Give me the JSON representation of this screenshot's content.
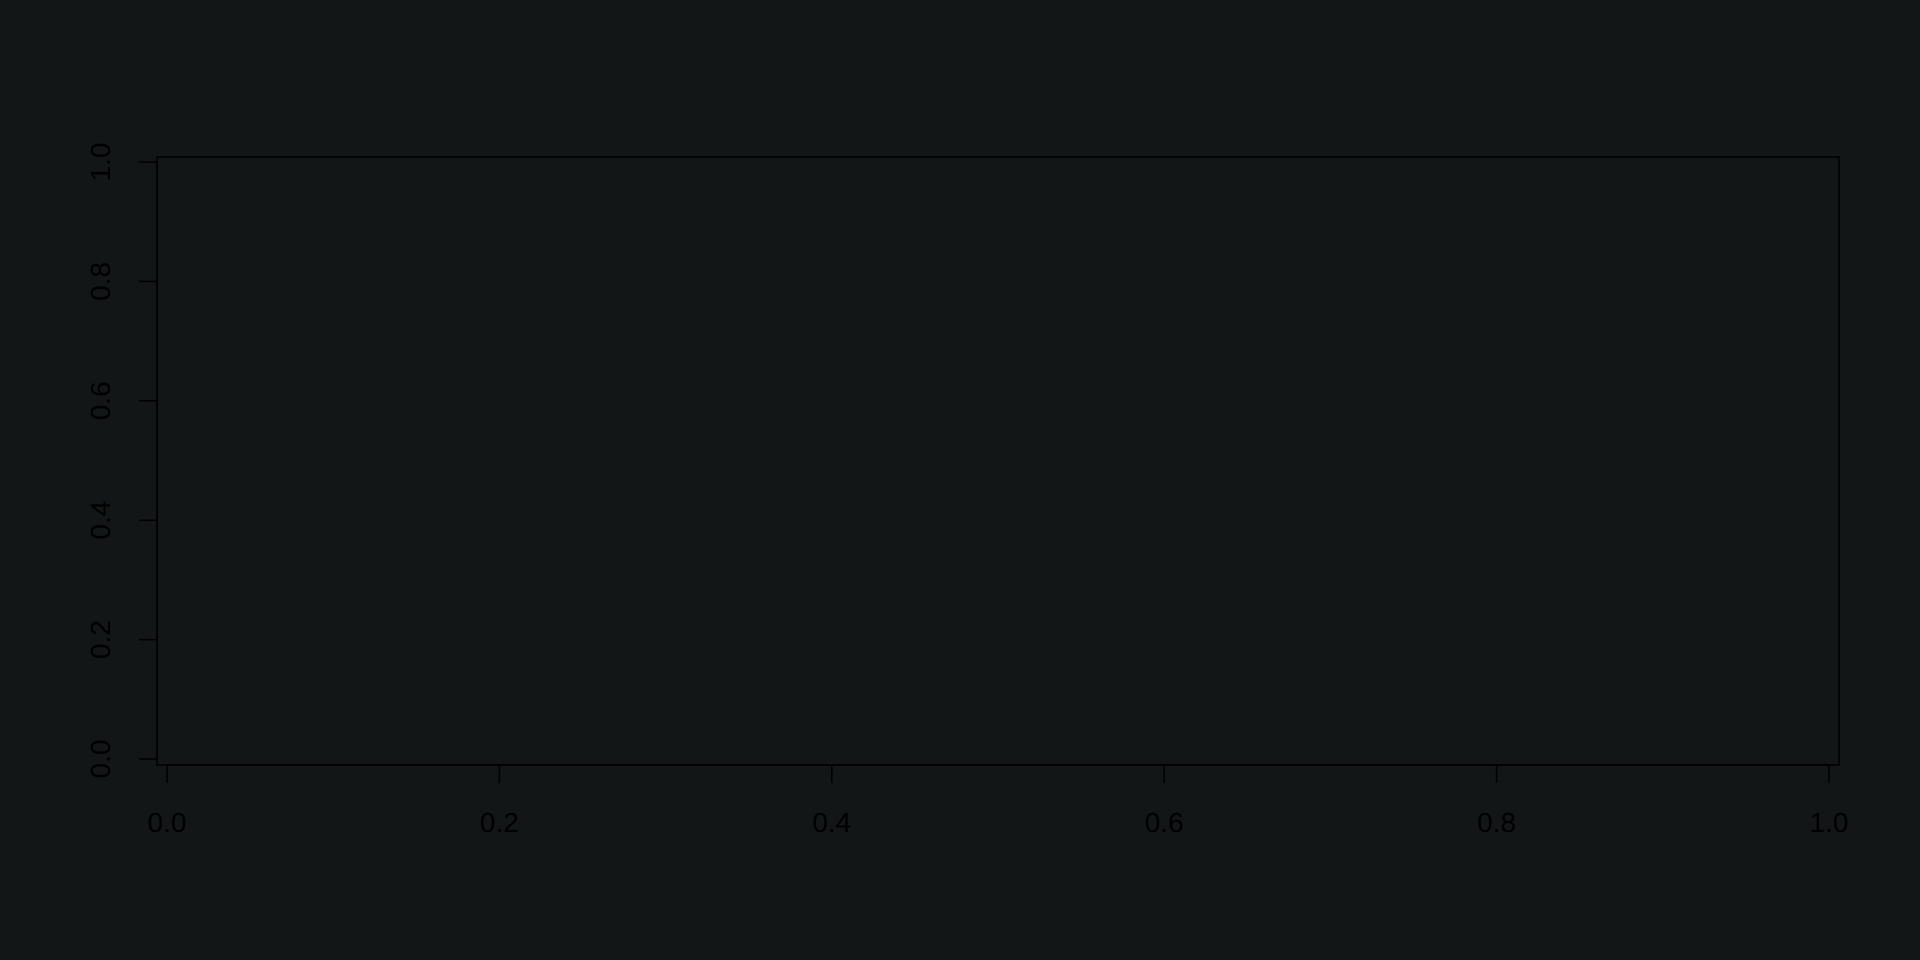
{
  "chart_data": {
    "type": "scatter",
    "title": "",
    "xlabel": "",
    "ylabel": "",
    "xlim": [
      0,
      1
    ],
    "ylim": [
      0,
      1
    ],
    "x_ticks": [
      "0.0",
      "0.2",
      "0.4",
      "0.6",
      "0.8",
      "1.0"
    ],
    "y_ticks": [
      "0.0",
      "0.2",
      "0.4",
      "0.6",
      "0.8",
      "1.0"
    ],
    "series": [],
    "grid": false,
    "legend": "none"
  },
  "colors": {
    "background": "#121617",
    "axis": "#000000",
    "text": "#000000"
  }
}
